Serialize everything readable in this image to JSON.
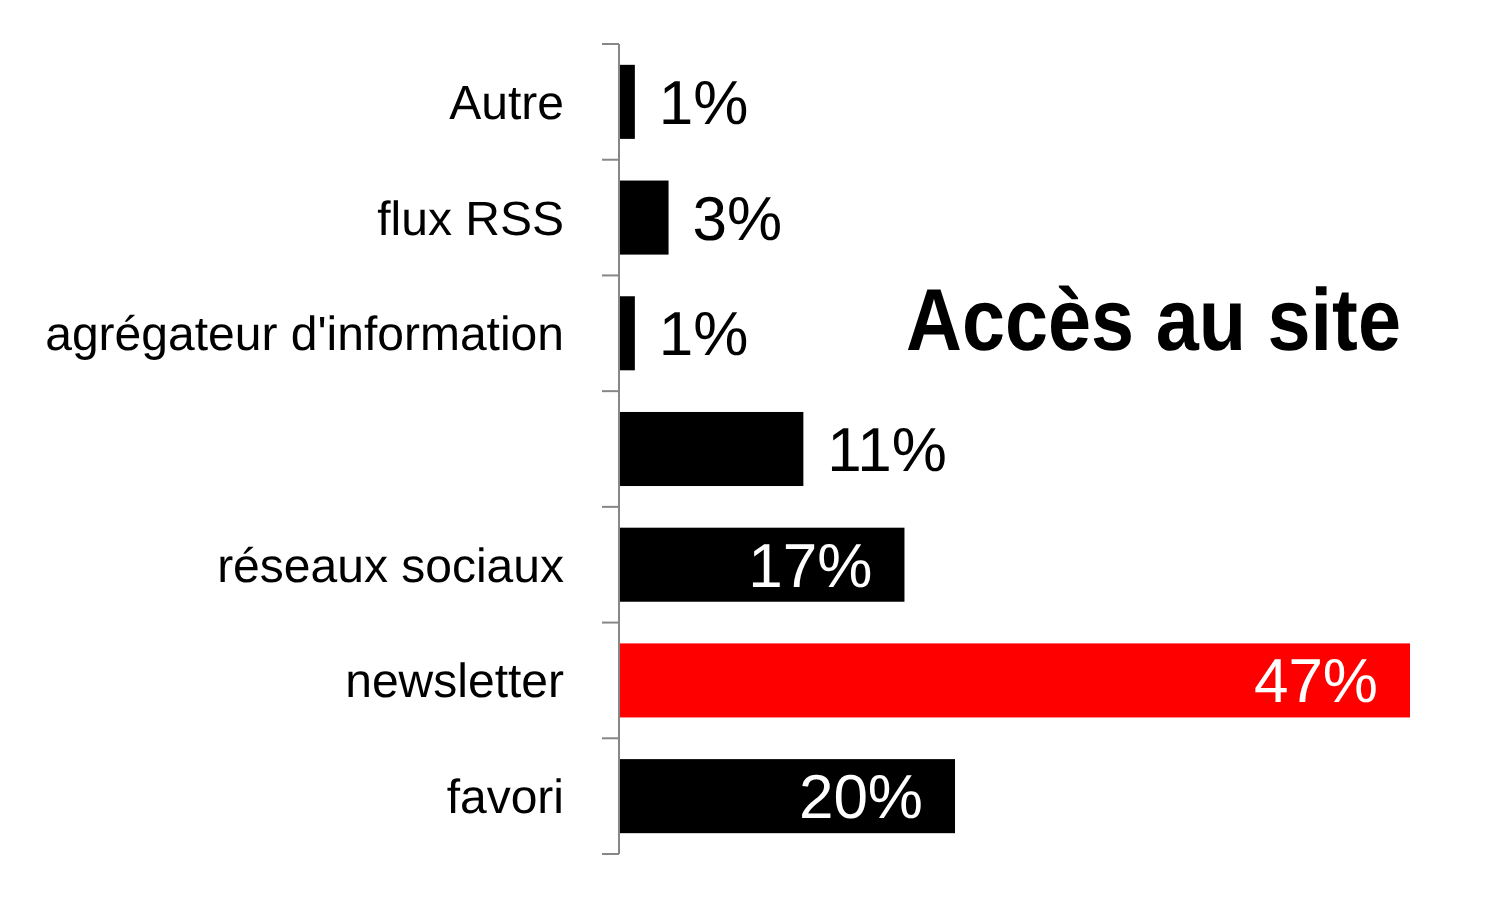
{
  "chart_data": {
    "type": "bar",
    "orientation": "horizontal",
    "title": "Accès au site",
    "categories": [
      "Autre",
      "flux RSS",
      "agrégateur d'information",
      null,
      "réseaux sociaux",
      "newsletter",
      "favori"
    ],
    "values": [
      1,
      3,
      1,
      11,
      17,
      47,
      20
    ],
    "colors": [
      "#000000",
      "#000000",
      "#000000",
      "#000000",
      "#000000",
      "#ff0000",
      "#000000"
    ],
    "value_labels": [
      "1%",
      "3%",
      "1%",
      "11%",
      "17%",
      "47%",
      "20%"
    ]
  }
}
